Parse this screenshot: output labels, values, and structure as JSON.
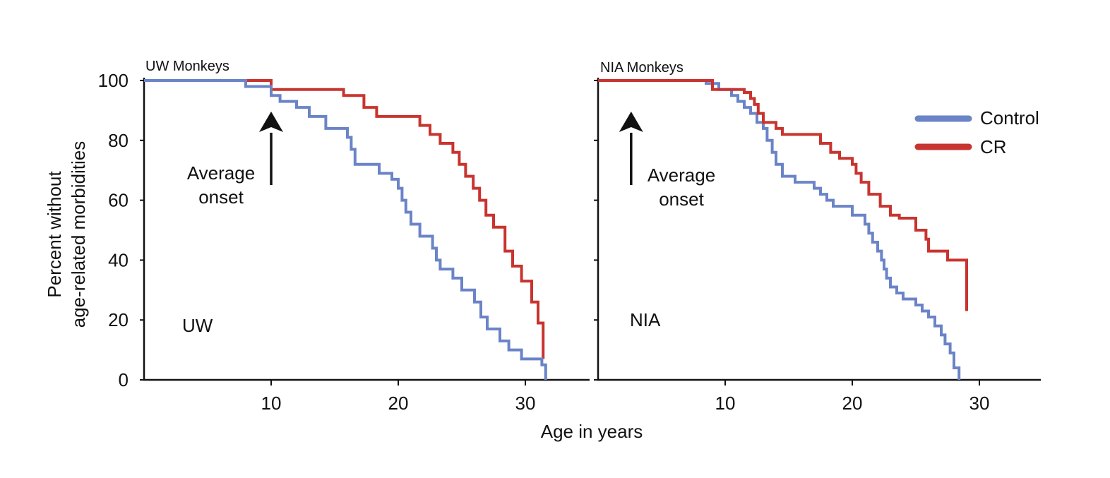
{
  "figure": {
    "ylabel_line1": "Percent without",
    "ylabel_line2": "age-related morbidities",
    "xlabel": "Age in years"
  },
  "legend": [
    {
      "label": "Control",
      "color": "#6b84c7"
    },
    {
      "label": "CR",
      "color": "#c8342f"
    }
  ],
  "colors": {
    "control": "#6b84c7",
    "cr": "#c8342f",
    "axis": "#111111"
  },
  "chart_data": [
    {
      "type": "line",
      "step": true,
      "title": "UW Monkeys",
      "panel_label": "UW",
      "annotation": {
        "line1": "Average",
        "line2": "onset",
        "arrow_at_x": 10
      },
      "xlabel": "Age in years",
      "ylabel": "Percent without age-related morbidities",
      "xlim": [
        0,
        35
      ],
      "ylim": [
        0,
        100
      ],
      "xticks": [
        10,
        20,
        30
      ],
      "yticks": [
        0,
        20,
        40,
        60,
        80,
        100
      ],
      "series": [
        {
          "name": "Control",
          "x": [
            0,
            8,
            10,
            10.7,
            12,
            13,
            14.3,
            16,
            16.3,
            16.6,
            18.5,
            19.5,
            20,
            20.3,
            20.6,
            21,
            21.7,
            22.7,
            23,
            23.3,
            24.3,
            25,
            26,
            26.5,
            27,
            28,
            28.7,
            29.7,
            31.3,
            31.6
          ],
          "y": [
            100,
            98,
            95,
            93,
            91,
            88,
            84,
            81,
            77,
            72,
            69,
            67,
            64,
            60,
            56,
            52,
            48,
            44,
            40,
            37,
            34,
            30,
            26,
            21,
            17,
            13,
            10,
            7,
            5,
            0
          ]
        },
        {
          "name": "CR",
          "x": [
            0,
            10,
            15.7,
            17.3,
            18.3,
            21.7,
            22.5,
            23.3,
            24.3,
            24.8,
            25.3,
            25.9,
            26.4,
            26.9,
            27.5,
            28.4,
            29,
            29.7,
            30.5,
            31,
            31.4
          ],
          "y": [
            100,
            97,
            95,
            91,
            88,
            85,
            82,
            79,
            76,
            72,
            68,
            64,
            60,
            55,
            51,
            43,
            38,
            33,
            26,
            19,
            7
          ]
        }
      ]
    },
    {
      "type": "line",
      "step": true,
      "title": "NIA Monkeys",
      "panel_label": "NIA",
      "annotation": {
        "line1": "Average",
        "line2": "onset",
        "arrow_at_x": 2.6
      },
      "xlabel": "Age in years",
      "ylabel": "Percent without age-related morbidities",
      "xlim": [
        0,
        35
      ],
      "ylim": [
        0,
        100
      ],
      "xticks": [
        10,
        20,
        30
      ],
      "yticks": [
        0,
        20,
        40,
        60,
        80,
        100
      ],
      "series": [
        {
          "name": "Control",
          "x": [
            0,
            8.5,
            9.5,
            10.5,
            11,
            11.5,
            12,
            12.5,
            13,
            13.3,
            13.7,
            14,
            14.5,
            15.5,
            17,
            17.5,
            18,
            18.5,
            20,
            21,
            21.3,
            21.6,
            22,
            22.3,
            22.5,
            22.7,
            23,
            23.5,
            24,
            25,
            25.5,
            26,
            26.5,
            27,
            27.3,
            27.7,
            28,
            28.4
          ],
          "y": [
            100,
            99,
            97,
            95,
            93,
            91,
            89,
            86,
            84,
            80,
            76,
            72,
            68,
            66,
            64,
            62,
            60,
            58,
            55,
            52,
            49,
            46,
            43,
            40,
            37,
            34,
            31,
            29,
            27,
            25,
            23,
            21,
            18,
            15,
            12,
            9,
            4,
            0
          ]
        },
        {
          "name": "CR",
          "x": [
            0,
            9,
            11.5,
            12,
            12.3,
            12.6,
            13,
            14,
            14.5,
            17.5,
            18.3,
            19,
            20,
            20.3,
            20.7,
            21.3,
            22.2,
            23,
            23.7,
            25,
            25.8,
            26,
            27.5,
            29
          ],
          "y": [
            100,
            97,
            96,
            94,
            92,
            89,
            86,
            84,
            82,
            79,
            76,
            74,
            72,
            69,
            66,
            62,
            58,
            55,
            54,
            50,
            47,
            43,
            40,
            23
          ]
        }
      ]
    }
  ]
}
